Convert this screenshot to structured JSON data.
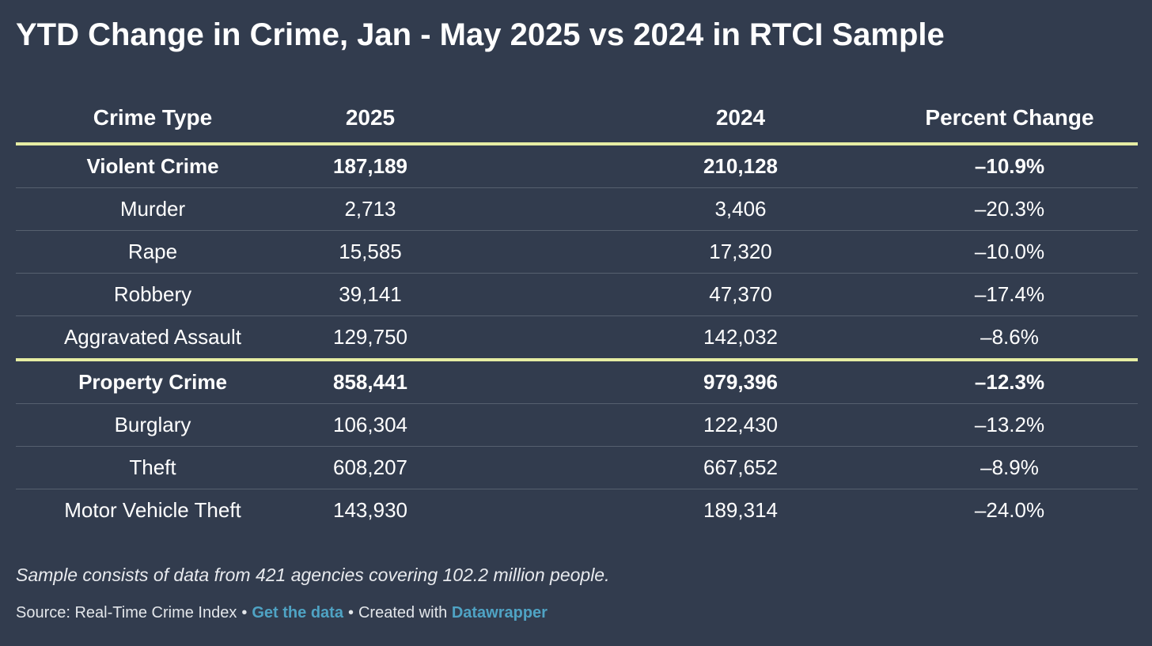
{
  "title": "YTD Change in Crime, Jan - May 2025 vs 2024 in RTCI Sample",
  "chart_data": {
    "type": "table",
    "title": "YTD Change in Crime, Jan - May 2025 vs 2024 in RTCI Sample",
    "columns": [
      "Crime Type",
      "2025",
      "2024",
      "Percent Change"
    ],
    "rows": [
      {
        "type": "Violent Crime",
        "y2025": "187,189",
        "y2024": "210,128",
        "pct": "–10.9%",
        "bold": true
      },
      {
        "type": "Murder",
        "y2025": "2,713",
        "y2024": "3,406",
        "pct": "–20.3%",
        "bold": false
      },
      {
        "type": "Rape",
        "y2025": "15,585",
        "y2024": "17,320",
        "pct": "–10.0%",
        "bold": false
      },
      {
        "type": "Robbery",
        "y2025": "39,141",
        "y2024": "47,370",
        "pct": "–17.4%",
        "bold": false
      },
      {
        "type": "Aggravated Assault",
        "y2025": "129,750",
        "y2024": "142,032",
        "pct": "–8.6%",
        "bold": false
      },
      {
        "type": "Property Crime",
        "y2025": "858,441",
        "y2024": "979,396",
        "pct": "–12.3%",
        "bold": true
      },
      {
        "type": "Burglary",
        "y2025": "106,304",
        "y2024": "122,430",
        "pct": "–13.2%",
        "bold": false
      },
      {
        "type": "Theft",
        "y2025": "608,207",
        "y2024": "667,652",
        "pct": "–8.9%",
        "bold": false
      },
      {
        "type": "Motor Vehicle Theft",
        "y2025": "143,930",
        "y2024": "189,314",
        "pct": "–24.0%",
        "bold": false
      }
    ]
  },
  "footer": {
    "note": "Sample consists of data from 421 agencies covering 102.2 million people.",
    "source_text": "Source: Real-Time Crime Index",
    "separator": "•",
    "get_data_link": "Get the data",
    "created_with": "Created with",
    "datawrapper_link": "Datawrapper"
  },
  "colors": {
    "background": "#323c4e",
    "accent_rule": "#e6eda3",
    "link": "#4fa3c4"
  }
}
